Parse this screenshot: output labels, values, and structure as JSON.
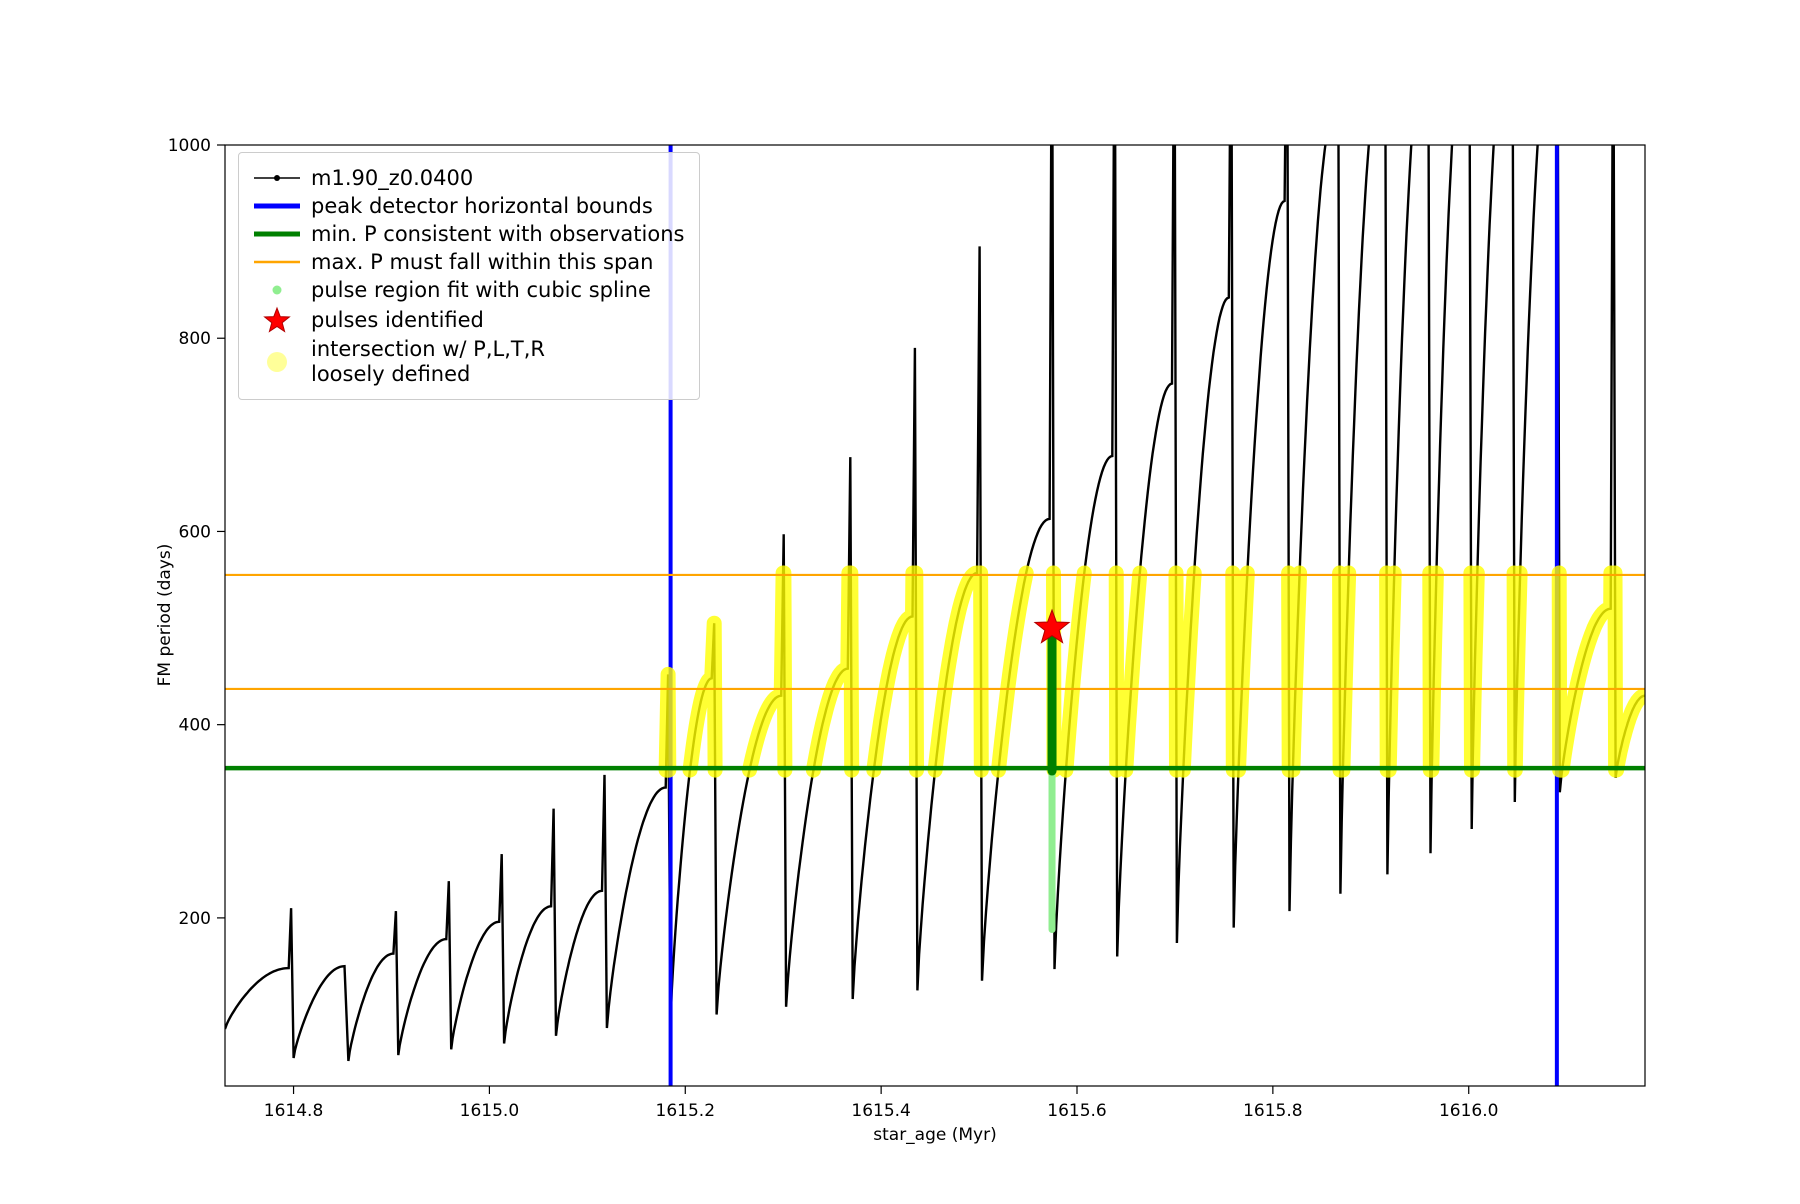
{
  "figure": {
    "background": "#ffffff"
  },
  "legend": {
    "items": [
      {
        "label": "m1.90_z0.0400",
        "marker": "line-dot",
        "color": "#000000",
        "icon": "series-line-icon"
      },
      {
        "label": "peak detector horizontal bounds",
        "marker": "thick-line",
        "color": "#0000ff",
        "icon": "blue-vline-icon"
      },
      {
        "label": "min. P consistent with observations",
        "marker": "thick-line",
        "color": "#008000",
        "icon": "green-hline-icon"
      },
      {
        "label": "max. P must fall within this span",
        "marker": "line",
        "color": "#ffa500",
        "icon": "orange-hline-icon"
      },
      {
        "label": "pulse region fit with cubic spline",
        "marker": "dot-small",
        "color": "#90ee90",
        "icon": "spline-dot-icon"
      },
      {
        "label": "pulses identified",
        "marker": "star",
        "color": "#ff0000",
        "icon": "pulse-star-icon"
      },
      {
        "label": "intersection w/ P,L,T,R\nloosely defined",
        "marker": "dot-large",
        "color": "#ffff00",
        "icon": "intersection-dot-icon"
      }
    ]
  },
  "chart_data": {
    "type": "line",
    "title": "",
    "xlabel": "star_age (Myr)",
    "ylabel": "FM period (days)",
    "xlim": [
      1614.73,
      1616.18
    ],
    "ylim": [
      26,
      1000
    ],
    "xticks": [
      1614.8,
      1615.0,
      1615.2,
      1615.4,
      1615.6,
      1615.8,
      1616.0
    ],
    "yticks": [
      200,
      400,
      600,
      800,
      1000
    ],
    "grid": false,
    "legend_position": "upper-left",
    "series_name": "m1.90_z0.0400",
    "peak_detector_bounds_x": [
      1615.185,
      1616.09
    ],
    "min_p_consistent": 355,
    "max_p_span": [
      437,
      555
    ],
    "intersection_band": [
      355,
      555
    ],
    "intersection_xmin": 1615.15,
    "spline_region": {
      "x": 1615.5745,
      "light_span": [
        188,
        352
      ],
      "dark_span": [
        352,
        497
      ]
    },
    "pulses_identified": [
      {
        "x": 1615.5745,
        "y": 500
      }
    ],
    "pulse_fields": [
      "age_start",
      "period_min",
      "age_peak",
      "arc_peak",
      "spike_peak"
    ],
    "pulses": [
      [
        1614.73,
        85,
        1614.795,
        148,
        210
      ],
      [
        1614.8,
        55,
        1614.852,
        150,
        150
      ],
      [
        1614.856,
        52,
        1614.902,
        163,
        207
      ],
      [
        1614.907,
        58,
        1614.956,
        178,
        238
      ],
      [
        1614.961,
        64,
        1615.01,
        196,
        266
      ],
      [
        1615.015,
        70,
        1615.063,
        212,
        313
      ],
      [
        1615.068,
        78,
        1615.115,
        228,
        348
      ],
      [
        1615.12,
        86,
        1615.18,
        335,
        452
      ],
      [
        1615.185,
        95,
        1615.227,
        448,
        505
      ],
      [
        1615.232,
        100,
        1615.298,
        430,
        597
      ],
      [
        1615.303,
        108,
        1615.366,
        458,
        677
      ],
      [
        1615.371,
        116,
        1615.432,
        512,
        790
      ],
      [
        1615.437,
        125,
        1615.498,
        557,
        895
      ],
      [
        1615.503,
        135,
        1615.572,
        613,
        1200
      ],
      [
        1615.577,
        147,
        1615.636,
        678,
        1200
      ],
      [
        1615.641,
        160,
        1615.697,
        753,
        1200
      ],
      [
        1615.702,
        174,
        1615.755,
        842,
        1200
      ],
      [
        1615.76,
        190,
        1615.812,
        942,
        1200
      ],
      [
        1615.817,
        207,
        1615.864,
        1040,
        1200
      ],
      [
        1615.869,
        225,
        1615.912,
        1090,
        1200
      ],
      [
        1615.917,
        245,
        1615.956,
        1120,
        1200
      ],
      [
        1615.961,
        267,
        1615.998,
        1140,
        1200
      ],
      [
        1616.003,
        292,
        1616.042,
        1150,
        1200
      ],
      [
        1616.047,
        320,
        1616.088,
        1150,
        1200
      ],
      [
        1616.093,
        330,
        1616.145,
        520,
        1200
      ],
      [
        1616.15,
        345,
        1616.18,
        430,
        430
      ]
    ],
    "colors": {
      "series": "#000000",
      "bounds": "#0000ff",
      "min_p": "#008000",
      "span": "#ffa500",
      "spline": "#90ee90",
      "pulse": "#ff0000",
      "intersection": "#ffff00"
    }
  }
}
